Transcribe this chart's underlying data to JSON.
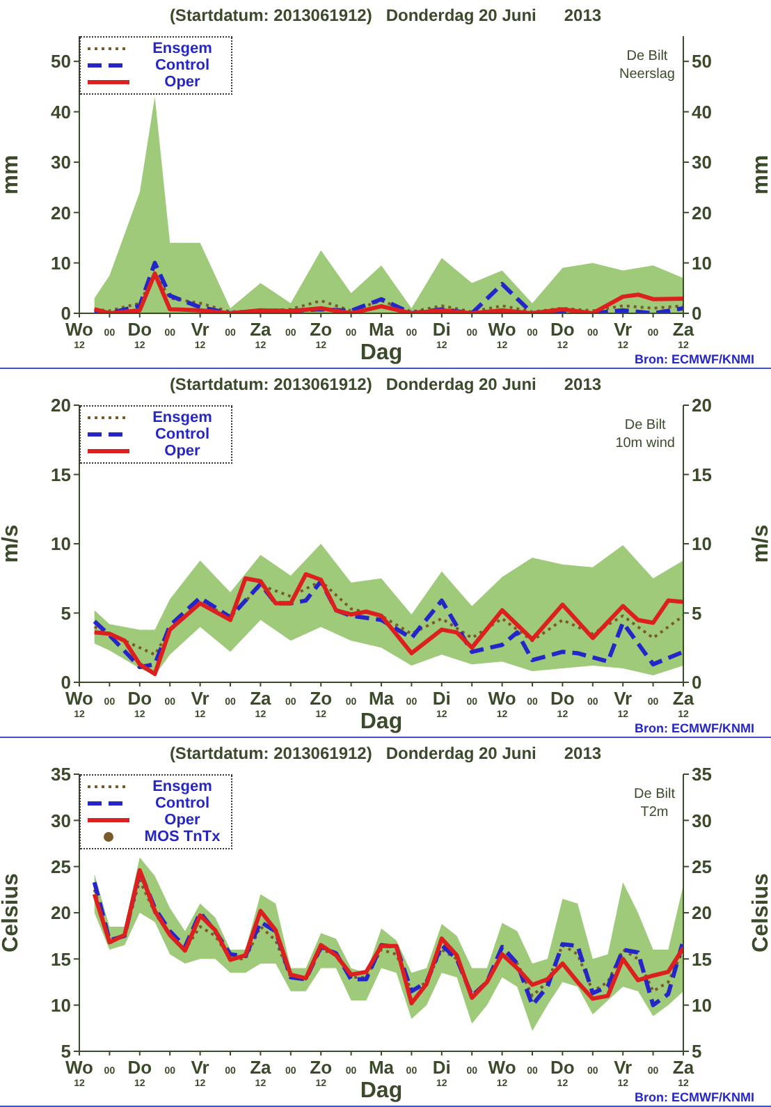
{
  "chart_data": [
    {
      "type": "line",
      "title": "(Startdatum: 2013061912)   Donderdag 20 Juni      2013",
      "xlabel": "Dag",
      "ylabel": "mm",
      "y2label": "mm",
      "annotations": [
        "De Bilt",
        "Neerslag",
        "Bron: ECMWF/KNMI"
      ],
      "categories": [
        "Wo\n12",
        null,
        "00",
        null,
        "Do\n12",
        null,
        "00",
        null,
        "Vr\n12",
        null,
        "00",
        null,
        "Za\n12",
        null,
        "00",
        null,
        "Zo\n12",
        null,
        "00",
        null,
        "Ma",
        null,
        "00",
        null,
        "Di\n12",
        null,
        "00",
        null,
        "Wo\n12",
        null,
        "00",
        null,
        "Do\n12",
        null,
        "00",
        null,
        "Vr\n12",
        null,
        "00",
        null,
        "Za\n12"
      ],
      "ylim": [
        0,
        55
      ],
      "yticks": [
        0,
        10,
        20,
        30,
        40,
        50
      ],
      "y2lim": [
        0,
        55
      ],
      "y2ticks": [
        0,
        10,
        20,
        30,
        40,
        50
      ],
      "legend": "top left",
      "series": [
        {
          "name": "Ensgem",
          "type": "line",
          "line_style": "dotted",
          "color": "#7a5a2a",
          "values": [
            null,
            0.8,
            0.5,
            null,
            2,
            8,
            3,
            null,
            2,
            null,
            0.3,
            null,
            0.5,
            null,
            0.8,
            null,
            2.5,
            null,
            0.5,
            null,
            2.5,
            null,
            0.3,
            null,
            1.5,
            null,
            0.3,
            null,
            1.5,
            null,
            0.3,
            null,
            1,
            null,
            0.5,
            null,
            1.5,
            null,
            1,
            null,
            1.5
          ],
          "lower": [
            null,
            0,
            0,
            null,
            0,
            0,
            0,
            null,
            0,
            null,
            0,
            null,
            0,
            null,
            0,
            null,
            0,
            null,
            0,
            null,
            0,
            null,
            0,
            null,
            0,
            null,
            0,
            null,
            0,
            null,
            0,
            null,
            0,
            null,
            0,
            null,
            0,
            null,
            0,
            null,
            0
          ],
          "upper": [
            null,
            3,
            7.5,
            null,
            24,
            43,
            14,
            null,
            14,
            null,
            1,
            null,
            6,
            null,
            2,
            null,
            12.5,
            null,
            4,
            null,
            9.5,
            null,
            1,
            null,
            11,
            null,
            6,
            null,
            8.5,
            null,
            2,
            null,
            9,
            null,
            10,
            null,
            8.5,
            null,
            9.5,
            null,
            7
          ]
        },
        {
          "name": "Control",
          "type": "line",
          "line_style": "dashed",
          "color": "#2626c8",
          "values": [
            null,
            0.3,
            0,
            null,
            1.5,
            10,
            3.5,
            null,
            1.2,
            null,
            0,
            null,
            0.5,
            null,
            0.5,
            null,
            0.8,
            null,
            0.5,
            null,
            2.8,
            null,
            0,
            null,
            0.8,
            null,
            0,
            null,
            5.8,
            null,
            0,
            null,
            0.5,
            null,
            0,
            null,
            0.6,
            null,
            0,
            null,
            1
          ]
        },
        {
          "name": "Oper",
          "type": "line",
          "line_style": "solid",
          "color": "#dc1f1f",
          "values": [
            null,
            0.8,
            0,
            null,
            0.6,
            7.9,
            0.8,
            null,
            0.6,
            null,
            0,
            null,
            0.6,
            null,
            0.4,
            null,
            1,
            null,
            0,
            null,
            1.4,
            null,
            0,
            null,
            0.6,
            null,
            0,
            null,
            0.6,
            null,
            0,
            null,
            0.8,
            null,
            0,
            null,
            3.3,
            3.7,
            2.8,
            null,
            2.9
          ]
        }
      ]
    },
    {
      "type": "line",
      "title": "(Startdatum: 2013061912)   Donderdag 20 Juni      2013",
      "xlabel": "Dag",
      "ylabel": "m/s",
      "y2label": "m/s",
      "annotations": [
        "De Bilt",
        "10m wind",
        "Bron: ECMWF/KNMI"
      ],
      "categories": [
        "Wo\n12",
        null,
        "00",
        null,
        "Do\n12",
        null,
        "00",
        null,
        "Vr\n12",
        null,
        "00",
        null,
        "Za\n12",
        null,
        "00",
        null,
        "Zo\n12",
        null,
        "00",
        null,
        "Ma",
        null,
        "00",
        null,
        "Di\n12",
        null,
        "00",
        null,
        "Wo\n12",
        null,
        "00",
        null,
        "Do\n12",
        null,
        "00",
        null,
        "Vr\n12",
        null,
        "00",
        null,
        "Za\n12"
      ],
      "ylim": [
        0,
        20
      ],
      "yticks": [
        0,
        5,
        10,
        15,
        20
      ],
      "y2lim": [
        0,
        20
      ],
      "y2ticks": [
        0,
        5,
        10,
        15,
        20
      ],
      "legend": "top left",
      "series": [
        {
          "name": "Ensgem",
          "type": "line",
          "line_style": "dotted",
          "color": "#7a5a2a",
          "values": [
            null,
            4,
            3.5,
            null,
            2.5,
            2,
            3.8,
            null,
            5.8,
            null,
            4.7,
            null,
            7,
            null,
            6.2,
            null,
            7.3,
            null,
            5.3,
            null,
            4.8,
            null,
            3.5,
            null,
            4.6,
            null,
            3.2,
            null,
            4.6,
            null,
            3,
            null,
            4.5,
            null,
            3.5,
            null,
            4.8,
            null,
            3.2,
            null,
            4.8
          ],
          "lower": [
            null,
            2.8,
            2.3,
            null,
            1,
            0.5,
            2,
            null,
            4,
            null,
            2.2,
            null,
            4.5,
            null,
            3,
            null,
            4,
            null,
            3,
            null,
            2.5,
            null,
            1.2,
            null,
            2,
            null,
            1.3,
            null,
            1.5,
            null,
            0.8,
            null,
            1,
            null,
            1.2,
            null,
            1,
            null,
            0.5,
            null,
            1.2
          ],
          "upper": [
            null,
            5.2,
            4.2,
            null,
            3.8,
            3.8,
            6,
            null,
            8.8,
            null,
            6.5,
            null,
            9.2,
            null,
            7.7,
            null,
            10,
            null,
            7.2,
            null,
            7.5,
            null,
            4.9,
            null,
            8,
            null,
            5.5,
            null,
            7.6,
            null,
            9,
            null,
            8.5,
            null,
            8.3,
            null,
            9.9,
            null,
            7.5,
            null,
            8.8
          ]
        },
        {
          "name": "Control",
          "type": "line",
          "line_style": "dashed",
          "color": "#2626c8",
          "values": [
            null,
            4.4,
            3.4,
            null,
            1.1,
            1.3,
            4.1,
            null,
            6.1,
            null,
            4.7,
            null,
            7.1,
            5.7,
            5.7,
            5.9,
            7.3,
            5.2,
            4.8,
            null,
            4.5,
            null,
            3.2,
            null,
            5.9,
            null,
            2.2,
            null,
            2.7,
            3.6,
            1.6,
            null,
            2.2,
            2.1,
            null,
            1.5,
            4.3,
            null,
            1.3,
            null,
            2.2
          ]
        },
        {
          "name": "Oper",
          "type": "line",
          "line_style": "solid",
          "color": "#dc1f1f",
          "values": [
            null,
            3.6,
            3.5,
            3,
            1.3,
            0.6,
            3.8,
            null,
            5.7,
            null,
            4.5,
            7.5,
            7.3,
            5.7,
            5.7,
            7.8,
            7.4,
            5.2,
            4.9,
            5.1,
            4.8,
            null,
            2.1,
            null,
            3.8,
            3.6,
            2.5,
            null,
            5.2,
            null,
            3.1,
            null,
            5.6,
            null,
            3.2,
            null,
            5.5,
            4.5,
            4.3,
            5.9,
            5.8
          ]
        }
      ]
    },
    {
      "type": "line",
      "title": "(Startdatum: 2013061912)   Donderdag 20 Juni      2013",
      "xlabel": "Dag",
      "ylabel": "Celsius",
      "y2label": "Celsius",
      "annotations": [
        "De Bilt",
        "T2m",
        "Bron: ECMWF/KNMI"
      ],
      "categories": [
        "Wo\n12",
        null,
        "00",
        null,
        "Do\n12",
        null,
        "00",
        null,
        "Vr\n12",
        null,
        "00",
        null,
        "Za\n12",
        null,
        "00",
        null,
        "Zo\n12",
        null,
        "00",
        null,
        "Ma",
        null,
        "00",
        null,
        "Di\n12",
        null,
        "00",
        null,
        "Wo\n12",
        null,
        "00",
        null,
        "Do\n12",
        null,
        "00",
        null,
        "Vr\n12",
        null,
        "00",
        null,
        "Za\n12"
      ],
      "ylim": [
        5,
        35
      ],
      "yticks": [
        5,
        10,
        15,
        20,
        25,
        30,
        35
      ],
      "y2lim": [
        5,
        35
      ],
      "y2ticks": [
        5,
        10,
        15,
        20,
        25,
        30,
        35
      ],
      "legend": "top left",
      "series": [
        {
          "name": "Ensgem",
          "type": "line",
          "line_style": "dotted",
          "color": "#7a5a2a",
          "values": [
            null,
            22.5,
            17,
            17.5,
            23.5,
            20,
            17.5,
            16,
            18.5,
            17.5,
            15,
            15,
            18.5,
            17,
            13,
            13,
            16,
            15.5,
            13,
            13,
            16,
            15.5,
            11.5,
            12.5,
            16,
            15,
            11,
            12.5,
            15.5,
            14.5,
            11,
            12.5,
            16.5,
            15.5,
            11.5,
            12.5,
            16,
            15,
            11.5,
            12.5,
            16
          ],
          "lower": [
            null,
            20,
            16,
            16.5,
            20,
            19,
            15.5,
            14.5,
            15,
            15,
            13.5,
            13.5,
            14.5,
            14.5,
            11.5,
            11.5,
            14,
            14,
            10.5,
            10.5,
            14,
            13.5,
            8.5,
            10,
            13.5,
            13,
            8,
            10,
            13,
            12,
            7.2,
            10,
            12.5,
            12,
            9,
            10.5,
            12,
            11.5,
            8.8,
            10,
            11.5
          ],
          "upper": [
            null,
            24.2,
            18.5,
            18.5,
            26,
            24,
            20.5,
            18,
            21,
            19.5,
            16,
            16,
            22,
            21,
            14,
            14,
            17.8,
            17.2,
            14,
            13.5,
            18.3,
            17,
            13.5,
            14,
            18.8,
            17.5,
            14,
            14,
            18.9,
            18,
            14.5,
            15,
            21.5,
            21,
            15,
            15.5,
            23.3,
            20,
            16,
            16,
            23
          ]
        },
        {
          "name": "Control",
          "type": "line",
          "line_style": "dashed",
          "color": "#2626c8",
          "values": [
            null,
            23.3,
            17,
            17.5,
            24.5,
            20.5,
            18,
            16.3,
            20,
            18,
            15.5,
            15.3,
            19,
            18,
            13,
            12.8,
            16.3,
            15.6,
            12.8,
            12.8,
            16.5,
            16.3,
            11.5,
            12.5,
            16.5,
            15,
            11,
            12.5,
            16.3,
            14.5,
            10,
            12,
            16.6,
            16.4,
            11.3,
            12,
            16,
            15.7,
            10,
            11.2,
            17
          ]
        },
        {
          "name": "Oper",
          "type": "line",
          "line_style": "solid",
          "color": "#dc1f1f",
          "values": [
            null,
            22,
            16.8,
            17.6,
            24.6,
            20.2,
            17.6,
            15.9,
            19.7,
            18.1,
            14.9,
            15.4,
            20.2,
            18.1,
            13.3,
            12.9,
            16.5,
            15.4,
            13.3,
            13.6,
            16.4,
            16.4,
            10.2,
            12.3,
            17.2,
            15.4,
            10.8,
            12.5,
            15.5,
            14,
            12.2,
            12.8,
            14.5,
            12.5,
            10.7,
            11,
            15,
            12.7,
            13.2,
            13.6,
            16.2
          ]
        },
        {
          "name": "MOS TnTx",
          "type": "scatter",
          "marker": "circle",
          "color": "#7a5a2a",
          "values": [
            null,
            null,
            null,
            null,
            null,
            null,
            null,
            null,
            null,
            null,
            null,
            null,
            null,
            null,
            null,
            null,
            null,
            null,
            null,
            null,
            null,
            null,
            null,
            null,
            null,
            null,
            null,
            null,
            null,
            null,
            null,
            null,
            null,
            null,
            null,
            null,
            null,
            null,
            null,
            null,
            null
          ]
        }
      ]
    }
  ]
}
